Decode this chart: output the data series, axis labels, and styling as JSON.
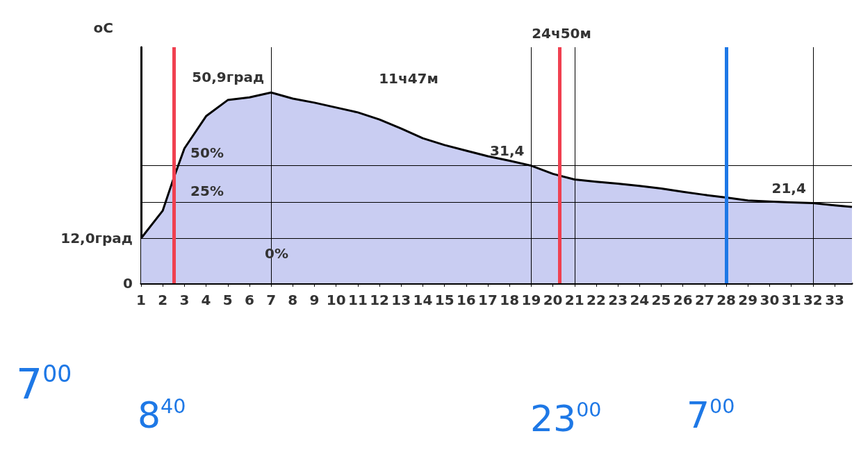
{
  "chart_data": {
    "type": "area",
    "ylabel": "oC",
    "color": "#c9cdf2",
    "x": [
      1,
      2,
      2.5,
      3,
      4,
      5,
      6,
      7,
      8,
      9,
      10,
      11,
      12,
      13,
      14,
      15,
      16,
      17,
      18,
      19,
      20,
      21,
      22,
      23,
      24,
      25,
      26,
      27,
      28,
      29,
      30,
      31,
      32,
      33,
      33.8
    ],
    "values": [
      12.0,
      19.4,
      28,
      36.0,
      44.6,
      48.9,
      49.6,
      50.9,
      49.3,
      48.2,
      46.9,
      45.6,
      43.7,
      41.3,
      38.7,
      36.9,
      35.4,
      33.9,
      32.7,
      31.4,
      29.2,
      27.7,
      27.1,
      26.6,
      26.0,
      25.3,
      24.4,
      23.6,
      22.9,
      22.1,
      21.8,
      21.6,
      21.4,
      20.8,
      20.4
    ],
    "xlim": [
      1,
      33.8
    ],
    "xticks": [
      1,
      2,
      3,
      4,
      5,
      6,
      7,
      8,
      9,
      10,
      11,
      12,
      13,
      14,
      15,
      16,
      17,
      18,
      19,
      20,
      21,
      22,
      23,
      24,
      25,
      26,
      27,
      28,
      29,
      30,
      31,
      32,
      33
    ],
    "ylim": [
      0,
      63
    ],
    "yticks": [
      0,
      {
        "value": 12,
        "label": "12,0град"
      }
    ],
    "grid": false,
    "ref_lines": [
      {
        "axis": "y",
        "value": 12.0,
        "color": "#000000"
      },
      {
        "axis": "y",
        "value": 31.45,
        "color": "#000000"
      },
      {
        "axis": "y",
        "value": 21.7,
        "color": "#000000"
      },
      {
        "axis": "x",
        "value": 7,
        "color": "#000000"
      },
      {
        "axis": "x",
        "value": 19,
        "color": "#000000"
      },
      {
        "axis": "x",
        "value": 21,
        "color": "#000000"
      },
      {
        "axis": "x",
        "value": 32,
        "color": "#000000"
      },
      {
        "axis": "x",
        "value": 2.5,
        "color": "#f04050"
      },
      {
        "axis": "x",
        "value": 20.3,
        "color": "#f04050"
      },
      {
        "axis": "x",
        "value": 28,
        "color": "#1e78e6"
      }
    ],
    "annotations": [
      {
        "text": "50,9град",
        "x": 7,
        "y": 50.9
      },
      {
        "text": "31,4",
        "x": 19,
        "y": 31.4
      },
      {
        "text": "21,4",
        "x": 32,
        "y": 21.4
      },
      "24ч50м",
      "11ч47м",
      "7$^{00}$",
      "8$^{40}$",
      "23$^{00}$",
      "7$^{00}$",
      "50%",
      "25%",
      "0%"
    ]
  }
}
